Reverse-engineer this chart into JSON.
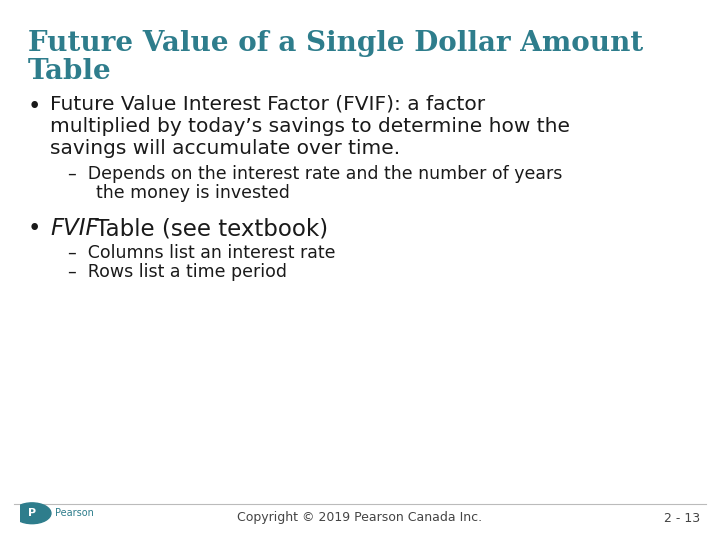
{
  "title_line1": "Future Value of a Single Dollar Amount",
  "title_line2": "Table",
  "title_color": "#2E7D8C",
  "background_color": "#FFFFFF",
  "bullet1_text_line1": "Future Value Interest Factor (FVIF): a factor",
  "bullet1_text_line2": "multiplied by today’s savings to determine how the",
  "bullet1_text_line3": "savings will accumulate over time.",
  "sub1_text_line1": "–  Depends on the interest rate and the number of years",
  "sub1_text_line2": "the money is invested",
  "bullet2_italic": "FVIF",
  "bullet2_text": " Table (see textbook)",
  "sub2_text_line1": "–  Columns list an interest rate",
  "sub2_text_line2": "–  Rows list a time period",
  "footer_copyright": "Copyright © 2019 Pearson Canada Inc.",
  "footer_page": "2 - 13",
  "footer_color": "#444444",
  "bullet_color": "#1a1a1a",
  "sub_color": "#1a1a1a",
  "title_fontsize": 20,
  "bullet_fontsize": 14.5,
  "sub_fontsize": 12.5,
  "footer_fontsize": 9,
  "logo_color": "#2E7D8C"
}
